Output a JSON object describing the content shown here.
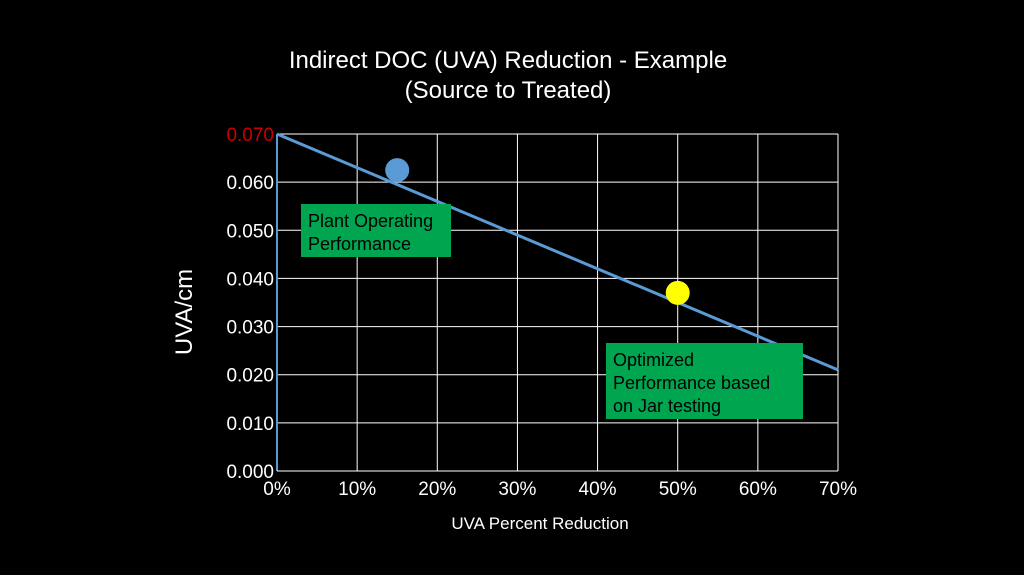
{
  "chart_data": {
    "type": "scatter",
    "title_line1": "Indirect DOC (UVA) Reduction - Example",
    "title_line2": "(Source to Treated)",
    "xlabel": "UVA Percent Reduction",
    "ylabel": "UVA/cm",
    "xlim": [
      0,
      0.7
    ],
    "ylim": [
      0,
      0.07
    ],
    "x_ticks": [
      {
        "value": 0.0,
        "label": "0%"
      },
      {
        "value": 0.1,
        "label": "10%"
      },
      {
        "value": 0.2,
        "label": "20%"
      },
      {
        "value": 0.3,
        "label": "30%"
      },
      {
        "value": 0.4,
        "label": "40%"
      },
      {
        "value": 0.5,
        "label": "50%"
      },
      {
        "value": 0.6,
        "label": "60%"
      },
      {
        "value": 0.7,
        "label": "70%"
      }
    ],
    "y_ticks": [
      {
        "value": 0.0,
        "label": "0.000",
        "color": "#ffffff"
      },
      {
        "value": 0.01,
        "label": "0.010",
        "color": "#ffffff"
      },
      {
        "value": 0.02,
        "label": "0.020",
        "color": "#ffffff"
      },
      {
        "value": 0.03,
        "label": "0.030",
        "color": "#ffffff"
      },
      {
        "value": 0.04,
        "label": "0.040",
        "color": "#ffffff"
      },
      {
        "value": 0.05,
        "label": "0.050",
        "color": "#ffffff"
      },
      {
        "value": 0.06,
        "label": "0.060",
        "color": "#ffffff"
      },
      {
        "value": 0.07,
        "label": "0.070",
        "color": "#cc0000"
      }
    ],
    "grid": true,
    "line": {
      "x": [
        0.0,
        0.7
      ],
      "y": [
        0.07,
        0.021
      ],
      "color": "#5b9bd5"
    },
    "points": [
      {
        "x": 0.15,
        "y": 0.0625,
        "color": "#5b9bd5"
      },
      {
        "x": 0.5,
        "y": 0.037,
        "color": "#ffff00"
      }
    ],
    "annotations": [
      {
        "lines": [
          "Plant Operating",
          "Performance"
        ],
        "color": "#00a550"
      },
      {
        "lines": [
          "Optimized",
          "Performance based",
          "on Jar testing"
        ],
        "color": "#00a550"
      }
    ]
  }
}
